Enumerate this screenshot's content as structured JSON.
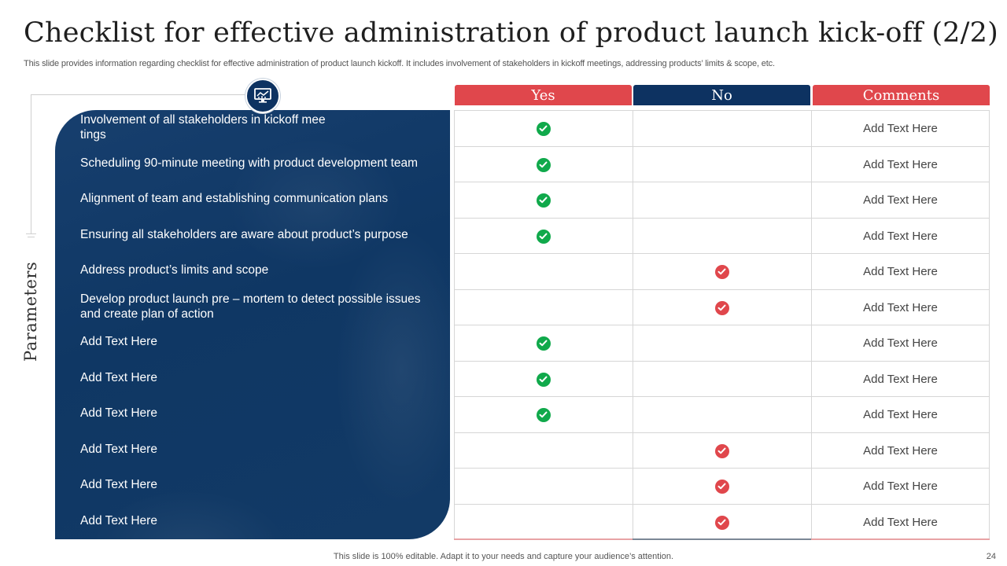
{
  "slide": {
    "title": "Checklist for effective administration of product launch kick-off (2/2)",
    "subtitle": "This slide provides information regarding checklist for effective  administration of product launch kickoff. It includes involvement of stakeholders in kickoff meetings, addressing products’ limits & scope, etc.",
    "side_label": "Parameters",
    "badge_icon": "monitor-chart-icon",
    "footer": "This slide is 100% editable. Adapt it to your needs and capture your audience’s attention.",
    "page_number": "24"
  },
  "table": {
    "headers": {
      "yes": "Yes",
      "no": "No",
      "comments": "Comments"
    },
    "colors": {
      "red": "#e0474c",
      "navy": "#0d3261",
      "green": "#10a94b"
    },
    "rows": [
      {
        "parameter": "Involvement  of all stakeholders in kickoff mee tings",
        "answer": "yes",
        "comment": "Add Text Here"
      },
      {
        "parameter": "Scheduling 90-minute meeting with product development team",
        "answer": "yes",
        "comment": "Add Text Here"
      },
      {
        "parameter": "Alignment of team and establishing communication plans",
        "answer": "yes",
        "comment": "Add Text Here"
      },
      {
        "parameter": "Ensuring all stakeholders are aware about product’s purpose",
        "answer": "yes",
        "comment": "Add Text Here"
      },
      {
        "parameter": "Address product’s limits and scope",
        "answer": "no",
        "comment": "Add Text Here"
      },
      {
        "parameter": "Develop product launch  pre – mortem to detect possible issues and create plan of action",
        "answer": "no",
        "comment": "Add Text Here"
      },
      {
        "parameter": "Add Text Here",
        "answer": "yes",
        "comment": "Add Text Here"
      },
      {
        "parameter": "Add Text Here",
        "answer": "yes",
        "comment": "Add Text Here"
      },
      {
        "parameter": "Add Text Here",
        "answer": "yes",
        "comment": "Add Text Here"
      },
      {
        "parameter": "Add Text Here",
        "answer": "no",
        "comment": "Add Text Here"
      },
      {
        "parameter": "Add Text Here",
        "answer": "no",
        "comment": "Add Text Here"
      },
      {
        "parameter": "Add Text Here",
        "answer": "no",
        "comment": "Add Text Here"
      }
    ]
  }
}
